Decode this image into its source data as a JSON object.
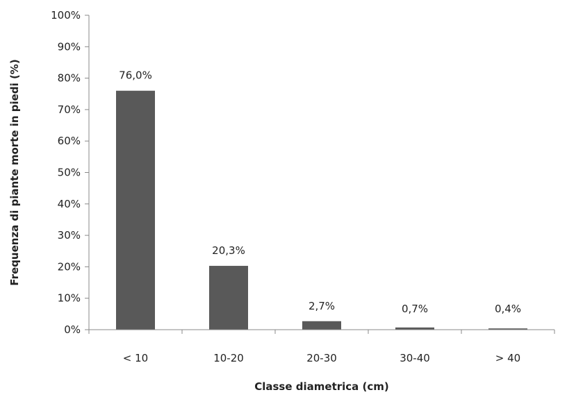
{
  "chart_data": {
    "type": "bar",
    "title": "",
    "xlabel": "Classe diametrica (cm)",
    "ylabel": "Frequenza  di piante  morte in piedi (%)",
    "categories": [
      "< 10",
      "10-20",
      "20-30",
      "30-40",
      "> 40"
    ],
    "values": [
      76.0,
      20.3,
      2.7,
      0.7,
      0.4
    ],
    "data_labels": [
      "76,0%",
      "20,3%",
      "2,7%",
      "0,7%",
      "0,4%"
    ],
    "ylim": [
      0,
      100
    ],
    "yticks": [
      0,
      10,
      20,
      30,
      40,
      50,
      60,
      70,
      80,
      90,
      100
    ],
    "ytick_labels": [
      "0%",
      "10%",
      "20%",
      "30%",
      "40%",
      "50%",
      "60%",
      "70%",
      "80%",
      "90%",
      "100%"
    ],
    "grid": false,
    "legend": "none",
    "bar_color": "#595959"
  }
}
